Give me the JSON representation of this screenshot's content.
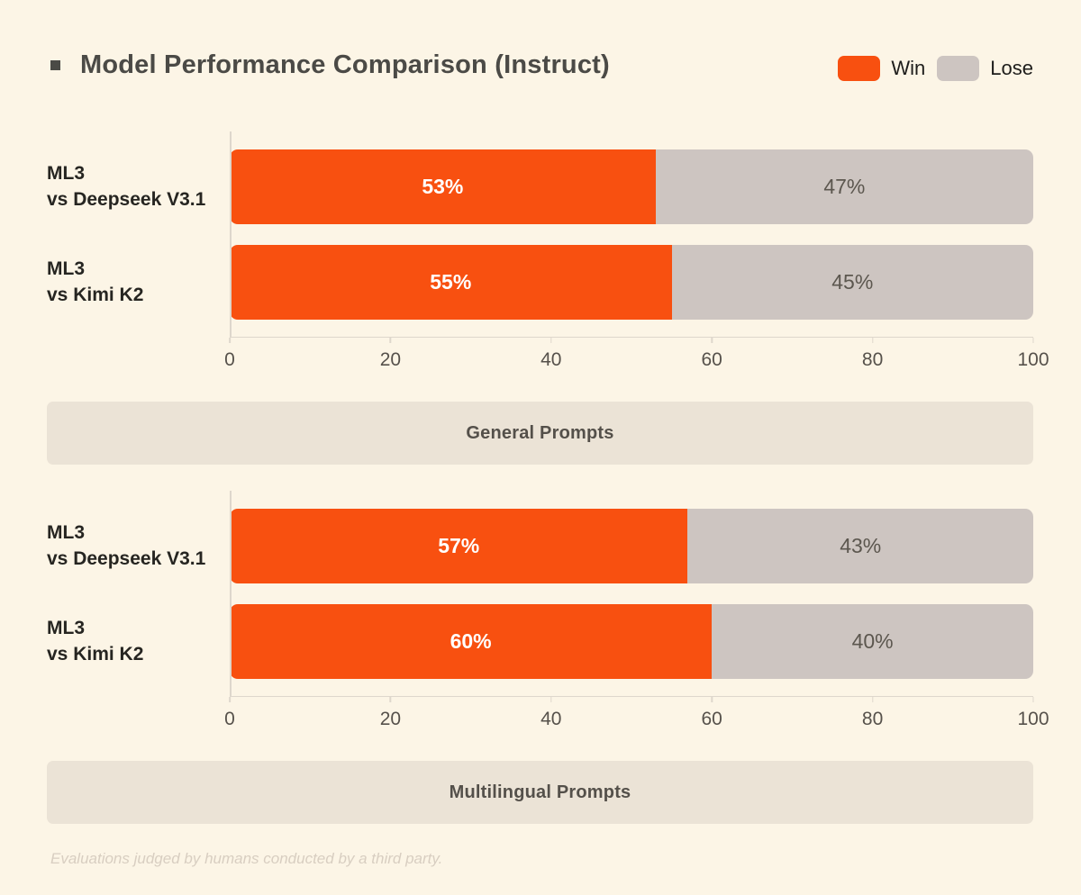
{
  "page": {
    "background_color": "#FCF5E6"
  },
  "header": {
    "bullet_icon": "small-square",
    "title": "Model Performance Comparison (Instruct)",
    "title_color": "#4B4A46"
  },
  "legend": {
    "position": "top-right",
    "items": [
      {
        "label": "Win",
        "color": "#F85010"
      },
      {
        "label": "Lose",
        "color": "#CDC5C1"
      }
    ]
  },
  "chart_data": [
    {
      "type": "bar",
      "orientation": "horizontal",
      "stacked": true,
      "group_label": "General Prompts",
      "categories": [
        "ML3\nvs Deepseek V3.1",
        "ML3\nvs Kimi K2"
      ],
      "series": [
        {
          "name": "Win",
          "color": "#F85010",
          "values": [
            53,
            55
          ]
        },
        {
          "name": "Lose",
          "color": "#CDC5C1",
          "values": [
            47,
            45
          ]
        }
      ],
      "value_suffix": "%",
      "xlim": [
        0,
        100
      ],
      "x_ticks": [
        0,
        20,
        40,
        60,
        80,
        100
      ],
      "grid": false
    },
    {
      "type": "bar",
      "orientation": "horizontal",
      "stacked": true,
      "group_label": "Multilingual Prompts",
      "categories": [
        "ML3\nvs Deepseek V3.1",
        "ML3\nvs Kimi K2"
      ],
      "series": [
        {
          "name": "Win",
          "color": "#F85010",
          "values": [
            57,
            60
          ]
        },
        {
          "name": "Lose",
          "color": "#CDC5C1",
          "values": [
            43,
            40
          ]
        }
      ],
      "value_suffix": "%",
      "xlim": [
        0,
        100
      ],
      "x_ticks": [
        0,
        20,
        40,
        60,
        80,
        100
      ],
      "grid": false
    }
  ],
  "footer": {
    "note": "Evaluations judged by humans conducted by a third party."
  }
}
